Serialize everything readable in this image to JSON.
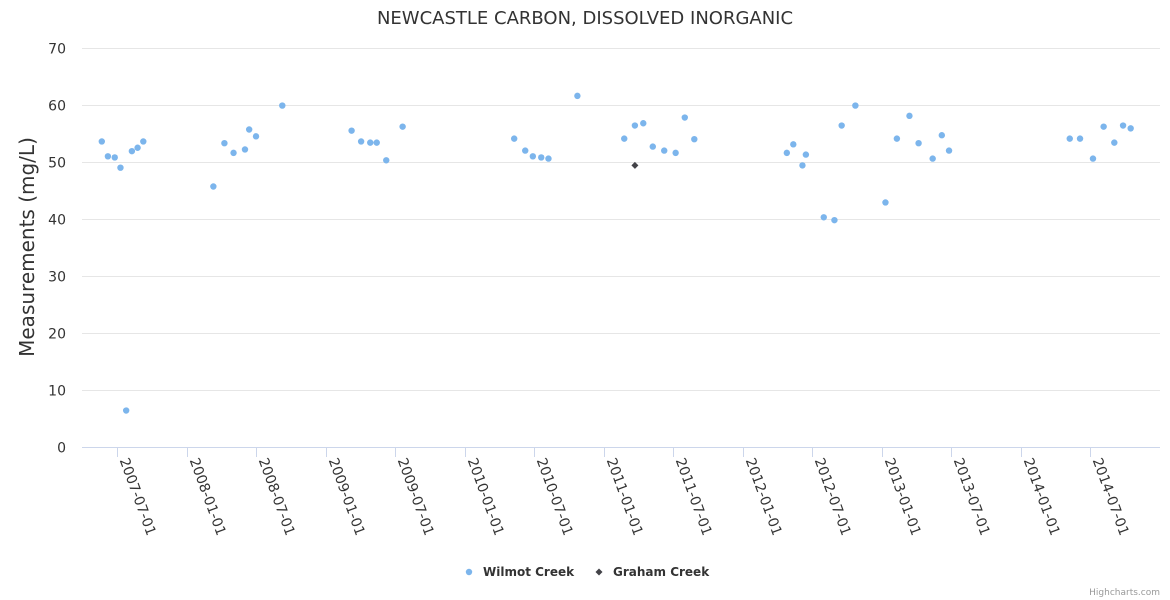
{
  "chart_data": {
    "type": "scatter",
    "title": "NEWCASTLE CARBON, DISSOLVED INORGANIC",
    "xlabel": "",
    "ylabel": "Measurements (mg/L)",
    "ylim": [
      0,
      70
    ],
    "yticks": [
      0,
      10,
      20,
      30,
      40,
      50,
      60,
      70
    ],
    "xlim": [
      "2007-04-01",
      "2014-12-31"
    ],
    "xticks": [
      "2007-07-01",
      "2008-01-01",
      "2008-07-01",
      "2009-01-01",
      "2009-07-01",
      "2010-01-01",
      "2010-07-01",
      "2011-01-01",
      "2011-07-01",
      "2012-01-01",
      "2012-07-01",
      "2013-01-01",
      "2013-07-01",
      "2014-01-01",
      "2014-07-01"
    ],
    "grid": "horizontal",
    "legend": "bottom-center",
    "series": [
      {
        "name": "Wilmot Creek",
        "color": "#7cb5ec",
        "marker": "circle",
        "points": [
          [
            "2007-05-23",
            53.6
          ],
          [
            "2007-06-08",
            51.0
          ],
          [
            "2007-06-26",
            50.8
          ],
          [
            "2007-07-11",
            49.0
          ],
          [
            "2007-07-26",
            6.4
          ],
          [
            "2007-08-10",
            51.9
          ],
          [
            "2007-08-25",
            52.5
          ],
          [
            "2007-09-09",
            53.6
          ],
          [
            "2008-03-11",
            45.7
          ],
          [
            "2008-04-09",
            53.3
          ],
          [
            "2008-05-03",
            51.6
          ],
          [
            "2008-06-02",
            52.2
          ],
          [
            "2008-06-13",
            55.7
          ],
          [
            "2008-07-01",
            54.5
          ],
          [
            "2008-09-08",
            59.9
          ],
          [
            "2009-03-09",
            55.5
          ],
          [
            "2009-04-03",
            53.6
          ],
          [
            "2009-04-27",
            53.4
          ],
          [
            "2009-05-14",
            53.4
          ],
          [
            "2009-06-08",
            50.3
          ],
          [
            "2009-07-21",
            56.2
          ],
          [
            "2010-05-10",
            54.1
          ],
          [
            "2010-06-08",
            52.0
          ],
          [
            "2010-06-28",
            51.0
          ],
          [
            "2010-07-20",
            50.8
          ],
          [
            "2010-08-08",
            50.6
          ],
          [
            "2010-10-23",
            61.6
          ],
          [
            "2011-02-23",
            54.1
          ],
          [
            "2011-03-23",
            56.4
          ],
          [
            "2011-04-14",
            56.8
          ],
          [
            "2011-05-09",
            52.7
          ],
          [
            "2011-06-08",
            52.0
          ],
          [
            "2011-07-08",
            51.6
          ],
          [
            "2011-08-01",
            57.8
          ],
          [
            "2011-08-26",
            54.0
          ],
          [
            "2012-04-25",
            51.6
          ],
          [
            "2012-05-12",
            53.1
          ],
          [
            "2012-06-05",
            49.4
          ],
          [
            "2012-06-14",
            51.3
          ],
          [
            "2012-07-31",
            40.3
          ],
          [
            "2012-08-28",
            39.8
          ],
          [
            "2012-09-16",
            56.4
          ],
          [
            "2012-10-22",
            59.9
          ],
          [
            "2013-01-09",
            42.9
          ],
          [
            "2013-02-08",
            54.1
          ],
          [
            "2013-03-13",
            58.1
          ],
          [
            "2013-04-06",
            53.3
          ],
          [
            "2013-05-13",
            50.6
          ],
          [
            "2013-06-06",
            54.7
          ],
          [
            "2013-06-25",
            52.0
          ],
          [
            "2014-05-08",
            54.1
          ],
          [
            "2014-06-04",
            54.1
          ],
          [
            "2014-07-08",
            50.6
          ],
          [
            "2014-08-05",
            56.2
          ],
          [
            "2014-09-02",
            53.4
          ],
          [
            "2014-09-25",
            56.4
          ],
          [
            "2014-10-15",
            55.9
          ]
        ]
      },
      {
        "name": "Graham Creek",
        "color": "#434348",
        "marker": "diamond",
        "points": [
          [
            "2011-03-23",
            49.4
          ]
        ]
      }
    ]
  },
  "credits": "Highcharts.com"
}
